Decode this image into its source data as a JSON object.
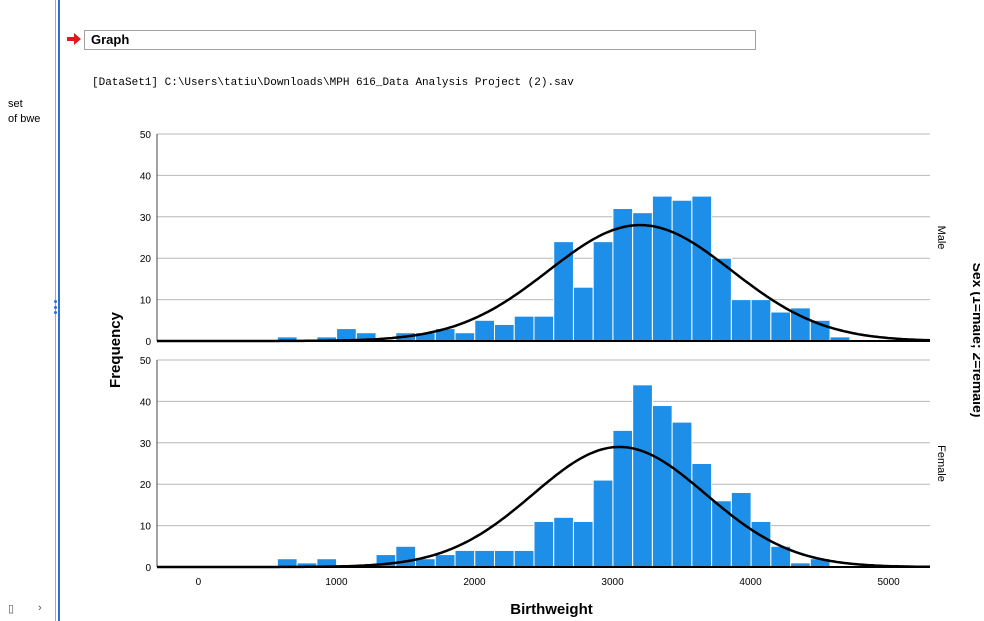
{
  "left_pane": {
    "lines": [
      "set",
      "of bwe"
    ]
  },
  "output": {
    "heading": "Graph",
    "dataset_line": "[DataSet1] C:\\Users\\tatiu\\Downloads\\MPH 616_Data Analysis Project (2).sav"
  },
  "colors": {
    "bar": "#1e8fe8",
    "curve": "#000000",
    "grid": "#b8b8b8",
    "arrow": "#e0191d"
  },
  "chart_data": {
    "type": "bar",
    "subtype": "histogram with normal curve, paneled by sex",
    "xlabel": "Birthweight",
    "ylabel": "Frequency",
    "panel_label": "Sex (1=male; 2=female)",
    "xlim": [
      -300,
      5300
    ],
    "x_ticks": [
      "0",
      "1000",
      "2000",
      "3000",
      "4000",
      "5000"
    ],
    "x_tick_values": [
      0,
      1000,
      2000,
      3000,
      4000,
      5000
    ],
    "ylim": [
      0,
      50
    ],
    "y_ticks": [
      "0",
      "10",
      "20",
      "30",
      "40",
      "50"
    ],
    "y_tick_values": [
      0,
      10,
      20,
      30,
      40,
      50
    ],
    "bin_width": 143,
    "bin_start": 572,
    "grid": "horizontal",
    "panels": [
      {
        "name": "Male",
        "counts": [
          1,
          0,
          1,
          3,
          2,
          0,
          2,
          2,
          3,
          2,
          5,
          4,
          6,
          6,
          24,
          13,
          24,
          32,
          31,
          35,
          34,
          35,
          20,
          10,
          10,
          7,
          8,
          5,
          1
        ],
        "normal_mean": 3200,
        "normal_peak": 28
      },
      {
        "name": "Female",
        "counts": [
          2,
          1,
          2,
          0,
          0,
          3,
          5,
          2,
          3,
          4,
          4,
          4,
          4,
          11,
          12,
          11,
          21,
          33,
          44,
          39,
          35,
          25,
          16,
          18,
          11,
          5,
          1,
          2
        ],
        "normal_mean": 3050,
        "normal_peak": 29
      }
    ]
  }
}
